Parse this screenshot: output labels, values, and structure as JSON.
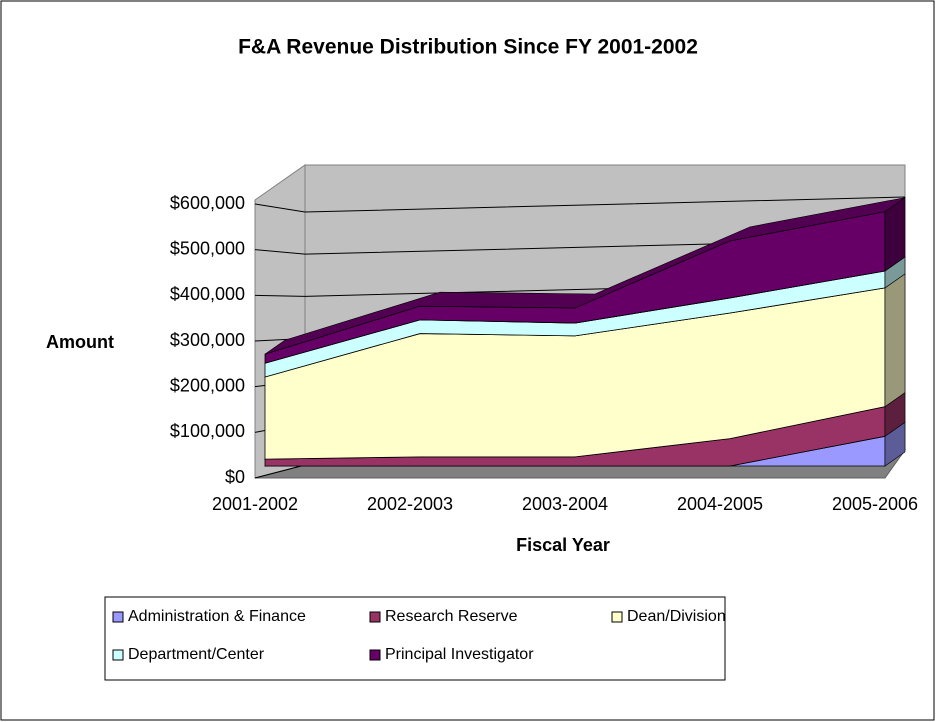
{
  "chart_data": {
    "type": "area3d",
    "title": "F&A Revenue Distribution Since FY 2001-2002",
    "x_label": "Fiscal Year",
    "y_label": "Amount",
    "categories": [
      "2001-2002",
      "2002-2003",
      "2003-2004",
      "2004-2005",
      "2005-2006"
    ],
    "series": [
      {
        "name": "Administration & Finance",
        "color": "#9999ff",
        "values": [
          0,
          0,
          0,
          0,
          65000
        ]
      },
      {
        "name": "Research Reserve",
        "color": "#993366",
        "values": [
          15000,
          20000,
          20000,
          60000,
          65000
        ]
      },
      {
        "name": "Dean/Division",
        "color": "#ffffcc",
        "values": [
          180000,
          270000,
          265000,
          275000,
          260000
        ]
      },
      {
        "name": "Department/Center",
        "color": "#ccffff",
        "values": [
          30000,
          30000,
          28000,
          33000,
          37000
        ]
      },
      {
        "name": "Principal Investigator",
        "color": "#660066",
        "values": [
          20000,
          30000,
          33000,
          125000,
          130000
        ]
      }
    ],
    "stacked": true,
    "ylim": [
      0,
      600000
    ],
    "yticks": [
      {
        "value": 0,
        "label": "$0"
      },
      {
        "value": 100000,
        "label": "$100,000"
      },
      {
        "value": 200000,
        "label": "$200,000"
      },
      {
        "value": 300000,
        "label": "$300,000"
      },
      {
        "value": 400000,
        "label": "$400,000"
      },
      {
        "value": 500000,
        "label": "$500,000"
      },
      {
        "value": 600000,
        "label": "$600,000"
      }
    ],
    "grid": true,
    "legend": "bottom"
  }
}
